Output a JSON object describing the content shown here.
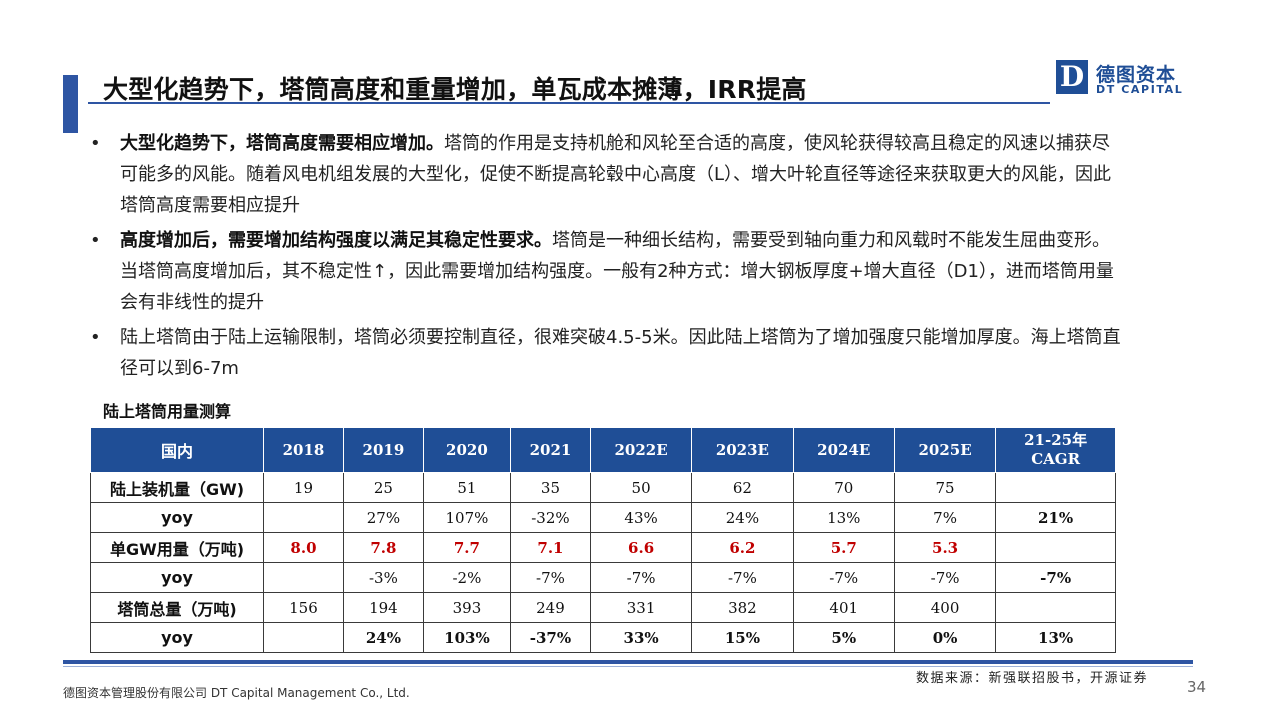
{
  "header": {
    "title": "大型化趋势下，塔筒高度和重量增加，单瓦成本摊薄，IRR提高",
    "logo_mark": "D",
    "logo_cn": "德图资本",
    "logo_en": "DT CAPITAL"
  },
  "bullets": [
    {
      "symbol": "•",
      "lead": "大型化趋势下，塔筒高度需要相应增加。",
      "text": "塔筒的作用是支持机舱和风轮至合适的高度，使风轮获得较高且稳定的风速以捕获尽可能多的风能。随着风电机组发展的大型化，促使不断提高轮毂中心高度（L）、增大叶轮直径等途径来获取更大的风能，因此塔筒高度需要相应提升"
    },
    {
      "symbol": "•",
      "lead": "高度增加后，需要增加结构强度以满足其稳定性要求。",
      "text": "塔筒是一种细长结构，需要受到轴向重力和风载时不能发生屈曲变形。当塔筒高度增加后，其不稳定性↑，因此需要增加结构强度。一般有2种方式：增大钢板厚度+增大直径（D1），进而塔筒用量会有非线性的提升"
    },
    {
      "symbol": "•",
      "lead": "",
      "text": "陆上塔筒由于陆上运输限制，塔筒必须要控制直径，很难突破4.5-5米。因此陆上塔筒为了增加强度只能增加厚度。海上塔筒直径可以到6-7m"
    }
  ],
  "table": {
    "caption": "陆上塔筒用量测算",
    "header_first": "国内",
    "years": [
      "2018",
      "2019",
      "2020",
      "2021",
      "2022E",
      "2023E",
      "2024E",
      "2025E"
    ],
    "cagr_line1": "21-25年",
    "cagr_line2": "CAGR",
    "rows": [
      {
        "label": "陆上装机量（GW)",
        "label_bold": true,
        "style": "",
        "cells": [
          "19",
          "25",
          "51",
          "35",
          "50",
          "62",
          "70",
          "75",
          ""
        ]
      },
      {
        "label": "yoy",
        "label_bold": true,
        "style": "",
        "cells": [
          "",
          "27%",
          "107%",
          "-32%",
          "43%",
          "24%",
          "13%",
          "7%",
          "21%"
        ],
        "bold_last": true
      },
      {
        "label": "单GW用量（万吨)",
        "label_bold": true,
        "style": "red",
        "cells": [
          "8.0",
          "7.8",
          "7.7",
          "7.1",
          "6.6",
          "6.2",
          "5.7",
          "5.3",
          ""
        ]
      },
      {
        "label": "yoy",
        "label_bold": true,
        "style": "",
        "cells": [
          "",
          "-3%",
          "-2%",
          "-7%",
          "-7%",
          "-7%",
          "-7%",
          "-7%",
          "-7%"
        ],
        "bold_last": true
      },
      {
        "label": "塔筒总量（万吨)",
        "label_bold": true,
        "style": "",
        "cells": [
          "156",
          "194",
          "393",
          "249",
          "331",
          "382",
          "401",
          "400",
          ""
        ]
      },
      {
        "label": "yoy",
        "label_bold": true,
        "style": "bold",
        "cells": [
          "",
          "24%",
          "103%",
          "-37%",
          "33%",
          "15%",
          "5%",
          "0%",
          "13%"
        ],
        "bold_last": true
      }
    ]
  },
  "footer": {
    "source": "数据来源：新强联招股书，开源证券",
    "company": "德图资本管理股份有限公司 DT Capital Management Co., Ltd.",
    "page_number": "34"
  },
  "colors": {
    "brand_blue": "#1f4e96",
    "accent_blue": "#2e55a3",
    "highlight_red": "#c00000"
  }
}
